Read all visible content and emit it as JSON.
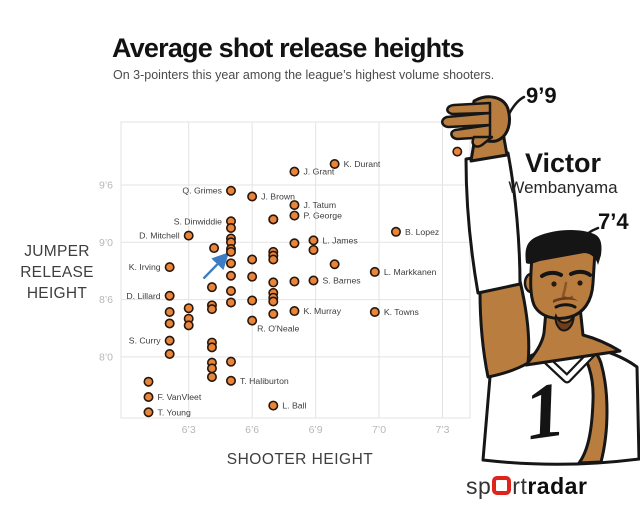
{
  "header": {
    "title": "Average shot release heights",
    "subtitle": "On 3-pointers this year among the league’s highest volume shooters."
  },
  "y_axis_title": {
    "line1": "JUMPER",
    "line2": "RELEASE",
    "line3": "HEIGHT"
  },
  "x_axis_title": "SHOOTER HEIGHT",
  "annotations": {
    "release_height": "9’9",
    "player_height": "7’4",
    "player_first": "Victor",
    "player_last": "Wembanyama"
  },
  "illustration": {
    "jersey_number": "1"
  },
  "logo": {
    "part1": "sp",
    "part2": "rt",
    "part3": "radar"
  },
  "colors": {
    "dot_fill": "#E8853B",
    "dot_stroke": "#27160B",
    "grid": "#E3E3E3",
    "tick_text": "#B7B7B7",
    "point_label": "#3D3D3D",
    "arrow": "#3D7BC4",
    "skin": "#B97D40",
    "logo_red": "#E0231C"
  },
  "chart_data": {
    "type": "scatter",
    "title": "Average shot release heights",
    "xlabel": "SHOOTER HEIGHT",
    "ylabel": "JUMPER RELEASE HEIGHT",
    "units": "inches (displayed as feet-inches)",
    "x_domain": [
      71.8,
      88.3
    ],
    "y_domain": [
      89.6,
      120.6
    ],
    "x_ticks": [
      {
        "v": 75,
        "label": "6’3"
      },
      {
        "v": 78,
        "label": "6’6"
      },
      {
        "v": 81,
        "label": "6’9"
      },
      {
        "v": 84,
        "label": "7’0"
      },
      {
        "v": 87,
        "label": "7’3"
      }
    ],
    "y_ticks": [
      {
        "v": 114,
        "label": "9’6"
      },
      {
        "v": 108,
        "label": "9’0"
      },
      {
        "v": 102,
        "label": "8’6"
      },
      {
        "v": 96,
        "label": "8’0"
      }
    ],
    "grid": true,
    "arrow": {
      "x1": 75.7,
      "y1": 104.2,
      "x2": 76.75,
      "y2": 106.6
    },
    "points": [
      {
        "x": 87.7,
        "y": 117.5
      },
      {
        "x": 81.9,
        "y": 116.2,
        "label": "K. Durant",
        "side": "right"
      },
      {
        "x": 80.0,
        "y": 115.4,
        "label": "J. Grant",
        "side": "right"
      },
      {
        "x": 77.0,
        "y": 113.4,
        "label": "Q. Grimes",
        "side": "left"
      },
      {
        "x": 78.0,
        "y": 112.8,
        "label": "J. Brown",
        "side": "right"
      },
      {
        "x": 80.0,
        "y": 111.9,
        "label": "J. Tatum",
        "side": "right"
      },
      {
        "x": 80.0,
        "y": 110.8,
        "label": "P. George",
        "side": "right"
      },
      {
        "x": 79.0,
        "y": 110.4
      },
      {
        "x": 77.0,
        "y": 110.2,
        "label": "S. Dinwiddie",
        "side": "left"
      },
      {
        "x": 84.8,
        "y": 109.1,
        "label": "B. Lopez",
        "side": "right"
      },
      {
        "x": 75.0,
        "y": 108.7,
        "label": "D. Mitchell",
        "side": "left"
      },
      {
        "x": 80.9,
        "y": 108.2,
        "label": "L. James",
        "side": "right"
      },
      {
        "x": 74.1,
        "y": 105.4,
        "label": "K. Irving",
        "side": "left"
      },
      {
        "x": 83.8,
        "y": 104.9,
        "label": "L. Markkanen",
        "side": "right"
      },
      {
        "x": 80.9,
        "y": 104.0,
        "label": "S. Barnes",
        "side": "right"
      },
      {
        "x": 74.1,
        "y": 102.4,
        "label": "D. Lillard",
        "side": "left"
      },
      {
        "x": 80.0,
        "y": 100.8,
        "label": "K. Murray",
        "side": "right"
      },
      {
        "x": 83.8,
        "y": 100.7,
        "label": "K. Towns",
        "side": "right"
      },
      {
        "x": 78.0,
        "y": 99.8,
        "label": "R. O'Neale",
        "side": "below-right"
      },
      {
        "x": 74.1,
        "y": 97.7,
        "label": "S. Curry",
        "side": "left"
      },
      {
        "x": 77.0,
        "y": 93.5,
        "label": "T. Haliburton",
        "side": "right"
      },
      {
        "x": 73.1,
        "y": 91.8,
        "label": "F. VanVleet",
        "side": "right"
      },
      {
        "x": 79.0,
        "y": 90.9,
        "label": "L. Ball",
        "side": "right"
      },
      {
        "x": 73.1,
        "y": 90.2,
        "label": "T. Young",
        "side": "right"
      },
      {
        "x": 79.0,
        "y": 110.4
      },
      {
        "x": 77.0,
        "y": 109.5
      },
      {
        "x": 77.0,
        "y": 108.4
      },
      {
        "x": 77.0,
        "y": 108.0
      },
      {
        "x": 76.2,
        "y": 107.4
      },
      {
        "x": 77.0,
        "y": 107.3
      },
      {
        "x": 77.0,
        "y": 107.0
      },
      {
        "x": 79.0,
        "y": 107.0
      },
      {
        "x": 79.0,
        "y": 106.6
      },
      {
        "x": 79.0,
        "y": 106.2
      },
      {
        "x": 78.0,
        "y": 106.2
      },
      {
        "x": 80.0,
        "y": 107.9
      },
      {
        "x": 80.9,
        "y": 107.2
      },
      {
        "x": 81.9,
        "y": 105.7
      },
      {
        "x": 77.0,
        "y": 105.8
      },
      {
        "x": 77.0,
        "y": 104.5
      },
      {
        "x": 78.0,
        "y": 104.4
      },
      {
        "x": 76.1,
        "y": 103.3
      },
      {
        "x": 80.0,
        "y": 103.9
      },
      {
        "x": 79.0,
        "y": 103.8
      },
      {
        "x": 77.0,
        "y": 102.9
      },
      {
        "x": 79.0,
        "y": 102.7
      },
      {
        "x": 79.0,
        "y": 102.2
      },
      {
        "x": 79.0,
        "y": 101.8
      },
      {
        "x": 78.0,
        "y": 101.9
      },
      {
        "x": 77.0,
        "y": 101.7
      },
      {
        "x": 75.0,
        "y": 101.1
      },
      {
        "x": 76.1,
        "y": 101.4
      },
      {
        "x": 76.1,
        "y": 101.0
      },
      {
        "x": 74.1,
        "y": 100.7
      },
      {
        "x": 75.0,
        "y": 100.0
      },
      {
        "x": 75.0,
        "y": 99.3
      },
      {
        "x": 74.1,
        "y": 99.5
      },
      {
        "x": 79.0,
        "y": 100.5
      },
      {
        "x": 76.1,
        "y": 97.5
      },
      {
        "x": 76.1,
        "y": 97.0
      },
      {
        "x": 74.1,
        "y": 96.3
      },
      {
        "x": 76.1,
        "y": 95.4
      },
      {
        "x": 76.1,
        "y": 94.8
      },
      {
        "x": 76.1,
        "y": 93.9
      },
      {
        "x": 77.0,
        "y": 95.5
      },
      {
        "x": 73.1,
        "y": 93.4
      }
    ]
  }
}
